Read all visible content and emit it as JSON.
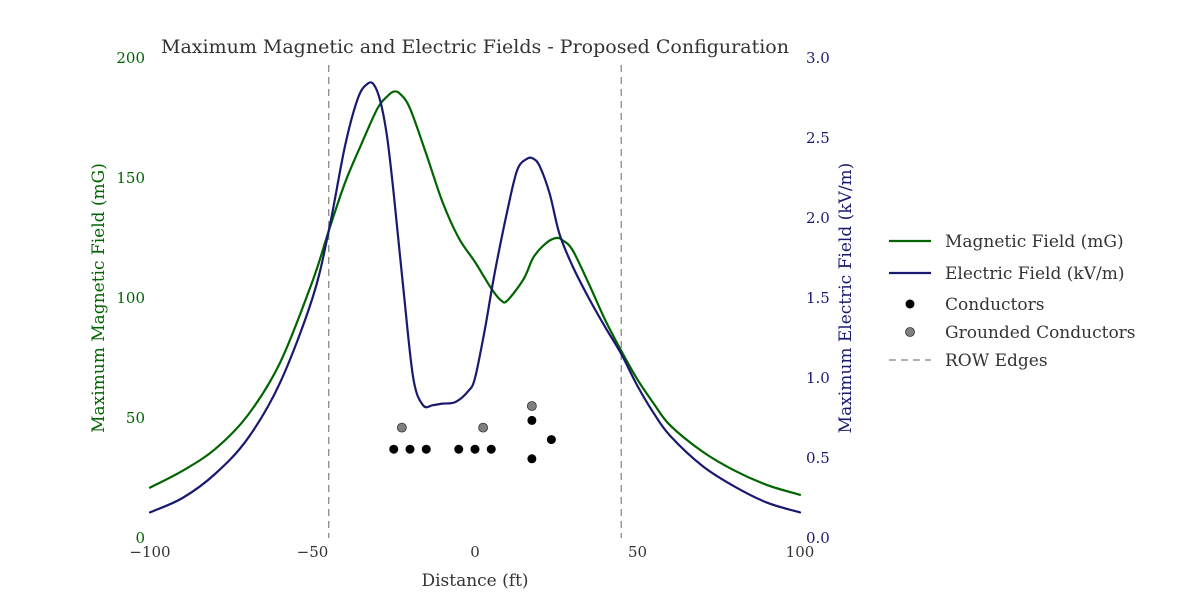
{
  "colors": {
    "magnetic": "#006400",
    "electric": "#191970",
    "conductor": "#000000",
    "grounded": "#808080",
    "row_edge": "#808080",
    "text": "#333333"
  },
  "chart_data": {
    "type": "line",
    "title": "Maximum Magnetic and Electric Fields - Proposed Configuration",
    "xlabel": "Distance (ft)",
    "ylabel_left": "Maximum Magnetic Field (mG)",
    "ylabel_right": "Maximum Electric Field (kV/m)",
    "xlim": [
      -100,
      100
    ],
    "ylim_left": [
      0,
      200
    ],
    "ylim_right": [
      0,
      3.0
    ],
    "x_ticks": [
      "−100",
      "−50",
      "0",
      "50",
      "100"
    ],
    "x_tick_values": [
      -100,
      -50,
      0,
      50,
      100
    ],
    "y_left_ticks": [
      "0",
      "50",
      "100",
      "150",
      "200"
    ],
    "y_left_tick_values": [
      0,
      50,
      100,
      150,
      200
    ],
    "y_right_ticks": [
      "0.0",
      "0.5",
      "1.0",
      "1.5",
      "2.0",
      "2.5",
      "3.0"
    ],
    "y_right_tick_values": [
      0.0,
      0.5,
      1.0,
      1.5,
      2.0,
      2.5,
      3.0
    ],
    "grid": false,
    "legend_position": "right",
    "series": [
      {
        "name": "Magnetic Field (mG)",
        "axis": "left",
        "x": [
          -100,
          -90,
          -80,
          -70,
          -60,
          -50,
          -45,
          -40,
          -35,
          -30,
          -27,
          -25,
          -23,
          -20,
          -15,
          -10,
          -5,
          0,
          5,
          8,
          10,
          15,
          18,
          22,
          25,
          27,
          30,
          35,
          40,
          45,
          50,
          55,
          60,
          70,
          80,
          90,
          100
        ],
        "y": [
          21,
          28,
          37,
          51,
          73,
          107,
          128,
          148,
          164,
          179,
          184,
          186,
          185,
          179,
          160,
          140,
          125,
          115,
          104,
          99,
          99,
          108,
          117,
          123,
          125,
          124,
          120,
          106,
          91,
          78,
          66,
          56,
          47,
          36,
          28,
          22,
          18
        ]
      },
      {
        "name": "Electric Field (kV/m)",
        "axis": "right",
        "x": [
          -100,
          -90,
          -80,
          -70,
          -60,
          -50,
          -45,
          -40,
          -36,
          -33,
          -31,
          -29,
          -27,
          -25,
          -22,
          -19,
          -16,
          -13,
          -10,
          -6,
          -2,
          0,
          3,
          6,
          10,
          13,
          16,
          18,
          20,
          23,
          26,
          30,
          35,
          40,
          45,
          50,
          55,
          60,
          70,
          80,
          90,
          100
        ],
        "y": [
          0.16,
          0.25,
          0.4,
          0.62,
          0.97,
          1.5,
          1.92,
          2.45,
          2.75,
          2.84,
          2.83,
          2.72,
          2.5,
          2.15,
          1.55,
          1.0,
          0.83,
          0.83,
          0.84,
          0.85,
          0.92,
          1.0,
          1.3,
          1.65,
          2.05,
          2.3,
          2.37,
          2.37,
          2.32,
          2.15,
          1.9,
          1.7,
          1.5,
          1.32,
          1.15,
          0.95,
          0.78,
          0.64,
          0.45,
          0.32,
          0.22,
          0.16
        ]
      }
    ],
    "markers": [
      {
        "name": "Conductors",
        "axis": "left",
        "x": [
          -25,
          -20,
          -15,
          -5,
          0,
          5,
          17.5,
          17.5,
          23.5
        ],
        "y": [
          37,
          37,
          37,
          37,
          37,
          37,
          49,
          33,
          41
        ]
      },
      {
        "name": "Grounded Conductors",
        "axis": "left",
        "x": [
          -22.5,
          2.5,
          17.5
        ],
        "y": [
          46,
          46,
          55
        ]
      }
    ],
    "vlines": {
      "name": "ROW Edges",
      "x": [
        -45,
        45
      ]
    }
  }
}
